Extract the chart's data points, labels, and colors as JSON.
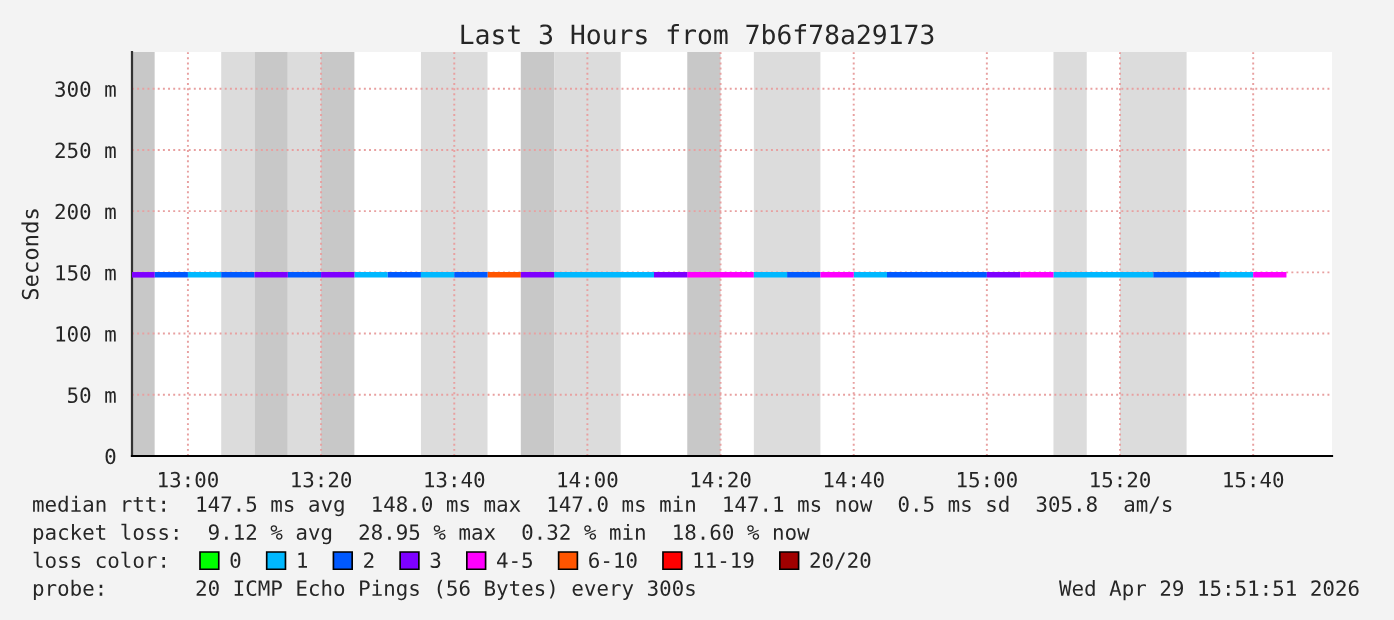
{
  "chart_data": {
    "type": "line",
    "title": "Last 3 Hours from 7b6f78a29173",
    "ylabel": "Seconds",
    "legend_title": "loss color:",
    "legend": "bottom",
    "grid": true,
    "xlim": [
      12.86,
      15.864
    ],
    "xticks": [
      {
        "value": 13.0,
        "label": "13:00"
      },
      {
        "value": 13.3333,
        "label": "13:20"
      },
      {
        "value": 13.6667,
        "label": "13:40"
      },
      {
        "value": 14.0,
        "label": "14:00"
      },
      {
        "value": 14.3333,
        "label": "14:20"
      },
      {
        "value": 14.6667,
        "label": "14:40"
      },
      {
        "value": 15.0,
        "label": "15:00"
      },
      {
        "value": 15.3333,
        "label": "15:20"
      },
      {
        "value": 15.6667,
        "label": "15:40"
      }
    ],
    "ylim": [
      0,
      330
    ],
    "yticks": [
      {
        "value": 0,
        "label": "0"
      },
      {
        "value": 50,
        "label": "50 m"
      },
      {
        "value": 100,
        "label": "100 m"
      },
      {
        "value": 150,
        "label": "150 m"
      },
      {
        "value": 200,
        "label": "200 m"
      },
      {
        "value": 250,
        "label": "250 m"
      },
      {
        "value": 300,
        "label": "300 m"
      }
    ],
    "series": [
      {
        "name": "0",
        "color": "#00ff00"
      },
      {
        "name": "1",
        "color": "#00b8ff",
        "x": [
          13.0,
          13.0833
        ],
        "values": [
          148,
          148
        ]
      },
      {
        "name": "2",
        "color": "#0059ff",
        "x": [
          12.9167,
          13.0
        ],
        "values": [
          148,
          148
        ]
      },
      {
        "name": "3",
        "color": "#7e00ff",
        "x": [
          12.86,
          12.9167
        ],
        "values": [
          148,
          148
        ]
      },
      {
        "name": "4-5",
        "color": "#ff00fe",
        "x": [
          14.25,
          14.4167
        ],
        "values": [
          148,
          148
        ]
      },
      {
        "name": "6-10",
        "color": "#ff5500",
        "x": [
          13.75,
          13.8333
        ],
        "values": [
          148,
          148
        ]
      },
      {
        "name": "11-19",
        "color": "#ff0000"
      },
      {
        "name": "20/20",
        "color": "#a10000"
      },
      {
        "color": "#00b8ff",
        "x": [
          13.4167,
          13.5
        ],
        "values": [
          148,
          148
        ]
      },
      {
        "color": "#00b8ff",
        "x": [
          13.5833,
          13.6667
        ],
        "values": [
          148,
          148
        ]
      },
      {
        "color": "#00b8ff",
        "x": [
          13.9167,
          14.1667
        ],
        "values": [
          148,
          148
        ]
      },
      {
        "color": "#00b8ff",
        "x": [
          14.4167,
          14.5
        ],
        "values": [
          148,
          148
        ]
      },
      {
        "color": "#00b8ff",
        "x": [
          14.6667,
          14.75
        ],
        "values": [
          148,
          148
        ]
      },
      {
        "color": "#00b8ff",
        "x": [
          15.1667,
          15.4167
        ],
        "values": [
          148,
          148
        ]
      },
      {
        "color": "#00b8ff",
        "x": [
          15.5833,
          15.6667
        ],
        "values": [
          148,
          148
        ]
      },
      {
        "color": "#0059ff",
        "x": [
          13.0833,
          13.1667
        ],
        "values": [
          148,
          148
        ]
      },
      {
        "color": "#0059ff",
        "x": [
          13.25,
          13.3333
        ],
        "values": [
          148,
          148
        ]
      },
      {
        "color": "#0059ff",
        "x": [
          13.5,
          13.5833
        ],
        "values": [
          148,
          148
        ]
      },
      {
        "color": "#0059ff",
        "x": [
          13.6667,
          13.75
        ],
        "values": [
          148,
          148
        ]
      },
      {
        "color": "#0059ff",
        "x": [
          14.5,
          14.5833
        ],
        "values": [
          148,
          148
        ]
      },
      {
        "color": "#0059ff",
        "x": [
          14.75,
          15.0
        ],
        "values": [
          148,
          148
        ]
      },
      {
        "color": "#0059ff",
        "x": [
          15.4167,
          15.5833
        ],
        "values": [
          148,
          148
        ]
      },
      {
        "color": "#7e00ff",
        "x": [
          13.1667,
          13.25
        ],
        "values": [
          148,
          148
        ]
      },
      {
        "color": "#7e00ff",
        "x": [
          13.3333,
          13.4167
        ],
        "values": [
          148,
          148
        ]
      },
      {
        "color": "#7e00ff",
        "x": [
          13.8333,
          13.9167
        ],
        "values": [
          148,
          148
        ]
      },
      {
        "color": "#7e00ff",
        "x": [
          14.1667,
          14.25
        ],
        "values": [
          148,
          148
        ]
      },
      {
        "color": "#7e00ff",
        "x": [
          15.0,
          15.0833
        ],
        "values": [
          148,
          148
        ]
      },
      {
        "color": "#ff00fe",
        "x": [
          14.5833,
          14.6667
        ],
        "values": [
          148,
          148
        ]
      },
      {
        "color": "#ff00fe",
        "x": [
          15.0833,
          15.1667
        ],
        "values": [
          148,
          148
        ]
      },
      {
        "color": "#ff00fe",
        "x": [
          15.6667,
          15.75
        ],
        "values": [
          148,
          148
        ]
      }
    ],
    "bands": [
      {
        "axis": "x",
        "from": 12.86,
        "to": 12.9167,
        "color": "#c8c8c8"
      },
      {
        "axis": "x",
        "from": 13.0833,
        "to": 13.1667,
        "color": "#dcdcdc"
      },
      {
        "axis": "x",
        "from": 13.1667,
        "to": 13.25,
        "color": "#c8c8c8"
      },
      {
        "axis": "x",
        "from": 13.25,
        "to": 13.3333,
        "color": "#dcdcdc"
      },
      {
        "axis": "x",
        "from": 13.3333,
        "to": 13.4167,
        "color": "#c8c8c8"
      },
      {
        "axis": "x",
        "from": 13.5833,
        "to": 13.75,
        "color": "#dcdcdc"
      },
      {
        "axis": "x",
        "from": 13.8333,
        "to": 13.9167,
        "color": "#c8c8c8"
      },
      {
        "axis": "x",
        "from": 13.9167,
        "to": 14.0833,
        "color": "#dcdcdc"
      },
      {
        "axis": "x",
        "from": 14.25,
        "to": 14.3333,
        "color": "#c8c8c8"
      },
      {
        "axis": "x",
        "from": 14.4167,
        "to": 14.5833,
        "color": "#dcdcdc"
      },
      {
        "axis": "x",
        "from": 15.1667,
        "to": 15.25,
        "color": "#dcdcdc"
      },
      {
        "axis": "x",
        "from": 15.3333,
        "to": 15.5,
        "color": "#dcdcdc"
      }
    ],
    "annotations": [
      "median rtt:  147.5 ms avg  148.0 ms max  147.0 ms min  147.1 ms now  0.5 ms sd  305.8  am/s",
      "packet loss:  9.12 % avg  28.95 % max  0.32 % min  18.60 % now",
      "probe:       20 ICMP Echo Pings (56 Bytes) every 300s",
      "Wed Apr 29 15:51:51 2026"
    ]
  }
}
